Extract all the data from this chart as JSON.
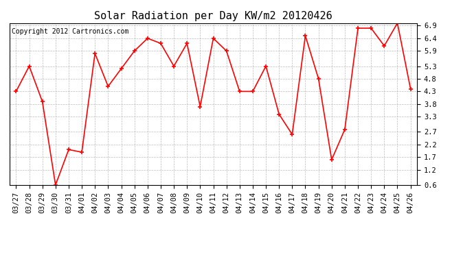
{
  "title": "Solar Radiation per Day KW/m2 20120426",
  "copyright": "Copyright 2012 Cartronics.com",
  "dates": [
    "03/27",
    "03/28",
    "03/29",
    "03/30",
    "03/31",
    "04/01",
    "04/02",
    "04/03",
    "04/04",
    "04/05",
    "04/06",
    "04/07",
    "04/08",
    "04/09",
    "04/10",
    "04/11",
    "04/12",
    "04/13",
    "04/14",
    "04/15",
    "04/16",
    "04/17",
    "04/18",
    "04/19",
    "04/20",
    "04/21",
    "04/22",
    "04/23",
    "04/24",
    "04/25",
    "04/26"
  ],
  "values": [
    4.3,
    5.3,
    3.9,
    0.6,
    2.0,
    1.9,
    5.8,
    4.5,
    5.2,
    5.9,
    6.4,
    6.2,
    5.3,
    6.2,
    3.7,
    6.4,
    5.9,
    4.3,
    4.3,
    5.3,
    3.4,
    2.6,
    6.5,
    4.8,
    1.6,
    2.8,
    6.8,
    6.8,
    6.1,
    7.0,
    4.4
  ],
  "ylim": [
    0.6,
    7.0
  ],
  "yticks": [
    0.6,
    1.2,
    1.7,
    2.2,
    2.7,
    3.3,
    3.8,
    4.3,
    4.8,
    5.3,
    5.9,
    6.4,
    6.9
  ],
  "line_color": "red",
  "marker": "+",
  "marker_color": "red",
  "bg_color": "#ffffff",
  "grid_color": "#aaaaaa",
  "title_fontsize": 11,
  "copyright_fontsize": 7,
  "tick_fontsize": 7.5
}
